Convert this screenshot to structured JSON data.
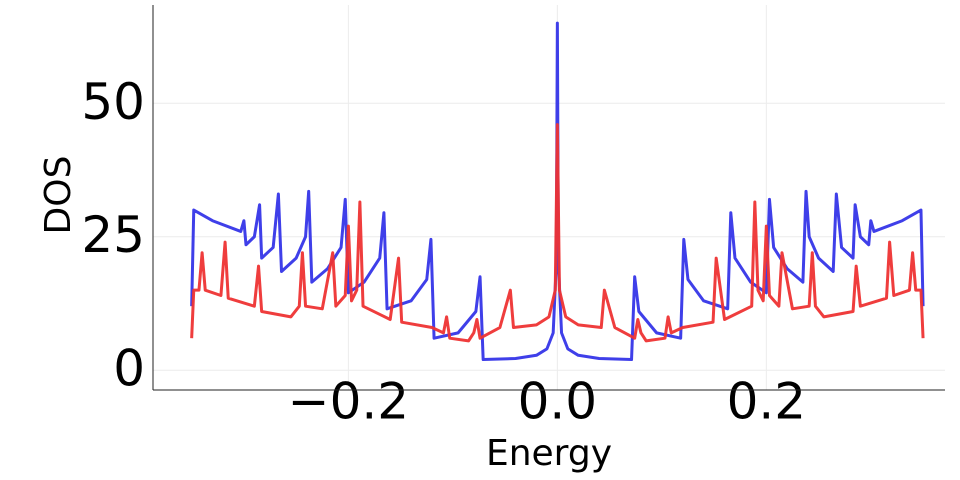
{
  "chart_data": {
    "type": "line",
    "xlabel": "Energy",
    "ylabel": "DOS",
    "xlim": [
      -0.387,
      0.371
    ],
    "ylim": [
      -3.7,
      68.4
    ],
    "xticks": [
      {
        "value": -0.2,
        "label": "−0.2"
      },
      {
        "value": 0.0,
        "label": "0.0"
      },
      {
        "value": 0.2,
        "label": "0.2"
      }
    ],
    "yticks": [
      0,
      25,
      50
    ],
    "grid": true,
    "series": [
      {
        "color": "#3535e8",
        "x": [
          -0.35,
          -0.348,
          -0.33,
          -0.303,
          -0.3,
          -0.298,
          -0.29,
          -0.285,
          -0.283,
          -0.272,
          -0.267,
          -0.264,
          -0.25,
          -0.241,
          -0.238,
          -0.235,
          -0.22,
          -0.207,
          -0.203,
          -0.2,
          -0.185,
          -0.17,
          -0.166,
          -0.163,
          -0.14,
          -0.125,
          -0.121,
          -0.118,
          -0.095,
          -0.078,
          -0.074,
          -0.071,
          -0.04,
          -0.02,
          -0.01,
          -0.004,
          -0.001,
          0.0,
          0.001,
          0.004,
          0.01,
          0.02,
          0.04,
          0.071,
          0.074,
          0.078,
          0.095,
          0.118,
          0.121,
          0.125,
          0.14,
          0.163,
          0.166,
          0.17,
          0.185,
          0.2,
          0.203,
          0.207,
          0.22,
          0.235,
          0.238,
          0.241,
          0.25,
          0.264,
          0.267,
          0.272,
          0.283,
          0.285,
          0.29,
          0.298,
          0.3,
          0.303,
          0.33,
          0.348,
          0.35
        ],
        "values": [
          12,
          30,
          28,
          26,
          28,
          23.5,
          25,
          31,
          21,
          23,
          33,
          18.5,
          21,
          25,
          33.5,
          16.5,
          19,
          23,
          32,
          14.5,
          16.5,
          21,
          29.5,
          11.5,
          13,
          17,
          24.5,
          6,
          7,
          11,
          17.5,
          2,
          2.2,
          2.8,
          4,
          7,
          20,
          65,
          20,
          7,
          4,
          2.8,
          2.2,
          2,
          17.5,
          11,
          7,
          6,
          24.5,
          17,
          13,
          11.5,
          29.5,
          21,
          16.5,
          14.5,
          32,
          23,
          19,
          16.5,
          33.5,
          25,
          21,
          18.5,
          33,
          23,
          21,
          31,
          25,
          23.5,
          28,
          26,
          28,
          30,
          12
        ]
      },
      {
        "color": "#ee3333",
        "x": [
          -0.35,
          -0.348,
          -0.343,
          -0.34,
          -0.337,
          -0.322,
          -0.318,
          -0.315,
          -0.29,
          -0.286,
          -0.283,
          -0.255,
          -0.247,
          -0.244,
          -0.241,
          -0.225,
          -0.215,
          -0.212,
          -0.203,
          -0.2,
          -0.197,
          -0.192,
          -0.189,
          -0.186,
          -0.16,
          -0.152,
          -0.149,
          -0.12,
          -0.109,
          -0.106,
          -0.103,
          -0.085,
          -0.08,
          -0.077,
          -0.074,
          -0.055,
          -0.045,
          -0.042,
          -0.02,
          -0.008,
          -0.002,
          0.0,
          0.002,
          0.008,
          0.02,
          0.042,
          0.045,
          0.055,
          0.074,
          0.077,
          0.08,
          0.085,
          0.103,
          0.106,
          0.109,
          0.12,
          0.149,
          0.152,
          0.16,
          0.186,
          0.189,
          0.192,
          0.197,
          0.2,
          0.203,
          0.212,
          0.215,
          0.225,
          0.241,
          0.244,
          0.247,
          0.255,
          0.283,
          0.286,
          0.29,
          0.315,
          0.318,
          0.322,
          0.337,
          0.34,
          0.343,
          0.348,
          0.35
        ],
        "values": [
          6,
          15,
          15,
          22,
          15,
          14,
          24,
          13.5,
          12,
          19.5,
          11,
          10,
          12,
          22,
          12,
          11.5,
          22,
          12,
          14,
          27,
          13,
          15,
          31.5,
          12,
          9.5,
          21,
          9,
          8,
          7,
          10,
          6,
          5.5,
          7,
          9.5,
          6,
          8,
          15,
          8,
          8.5,
          10,
          15,
          46,
          15,
          10,
          8.5,
          8,
          15,
          8,
          6,
          9.5,
          7,
          5.5,
          6,
          10,
          7,
          8,
          9,
          21,
          9.5,
          12,
          31.5,
          15,
          13,
          27,
          14,
          12,
          22,
          11.5,
          12,
          22,
          12,
          10,
          11,
          19.5,
          12,
          13.5,
          24,
          14,
          15,
          22,
          15,
          15,
          6
        ]
      }
    ]
  }
}
